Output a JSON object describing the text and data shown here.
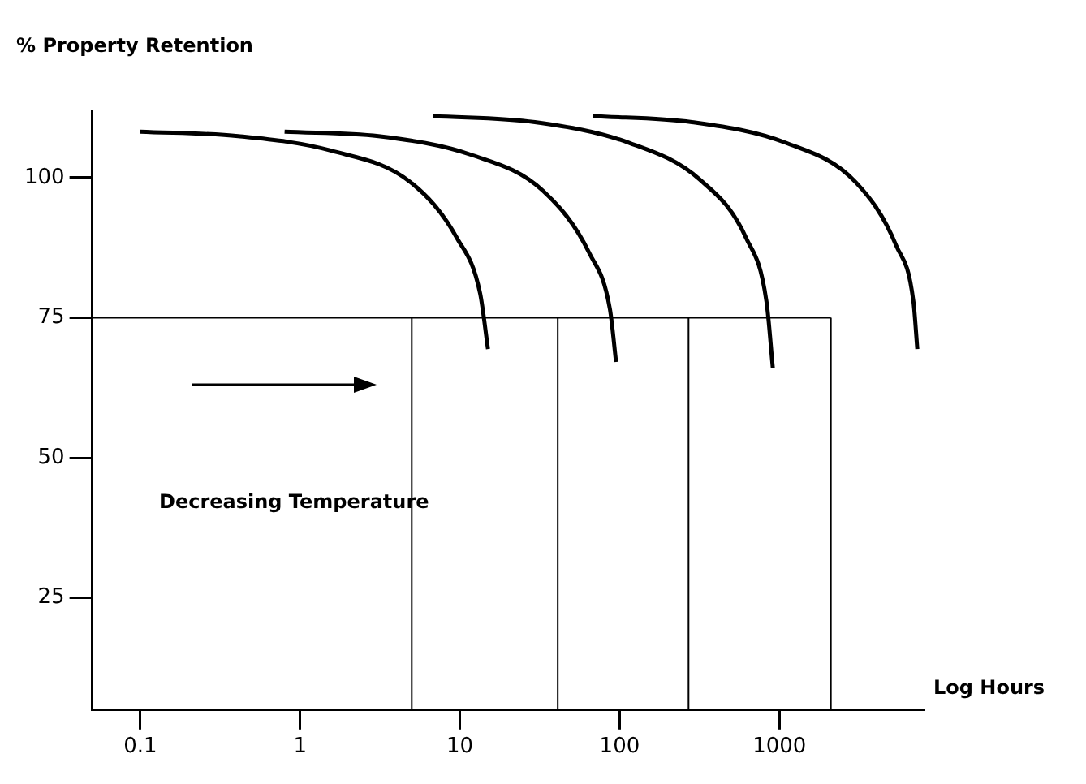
{
  "chart_data": {
    "type": "line",
    "ylabel": "% Property Retention",
    "xlabel": "Log Hours",
    "log": "x",
    "xlim": [
      0.05,
      8000
    ],
    "xticks": [
      0.1,
      1,
      10,
      100,
      1000
    ],
    "ylim": [
      5,
      112
    ],
    "yticks": [
      25,
      50,
      75,
      100
    ],
    "grid": false,
    "legend": false,
    "marker": "none",
    "line_style": "solid",
    "series": [
      {
        "color": "#000000",
        "x": [
          0.1,
          0.41,
          1.57,
          4.9,
          9.6,
          13.4,
          15
        ],
        "values": [
          108.2,
          107.4,
          104.8,
          99.2,
          89.2,
          79.3,
          69.4
        ]
      },
      {
        "color": "#000000",
        "x": [
          0.8,
          3.1,
          12,
          33,
          65,
          87,
          95
        ],
        "values": [
          108.2,
          107.4,
          104,
          97.7,
          86.4,
          76.5,
          67.1
        ]
      },
      {
        "color": "#000000",
        "x": [
          6.8,
          29.5,
          115,
          316,
          620,
          830,
          910
        ],
        "values": [
          111,
          109.9,
          106.2,
          99.7,
          89.2,
          77.9,
          66
        ]
      },
      {
        "color": "#000000",
        "x": [
          68,
          283,
          1100,
          3000,
          5400,
          6900,
          7300
        ],
        "values": [
          111,
          109.9,
          106.2,
          99.2,
          87.8,
          77.9,
          69.4
        ]
      }
    ],
    "ref_lines": [
      {
        "axis": "y",
        "value": 75
      },
      {
        "axis": "x",
        "value": 5
      },
      {
        "axis": "x",
        "value": 41
      },
      {
        "axis": "x",
        "value": 270
      },
      {
        "axis": "x",
        "value": 2100
      }
    ],
    "annotations": [
      "Decreasing Temperature"
    ]
  }
}
